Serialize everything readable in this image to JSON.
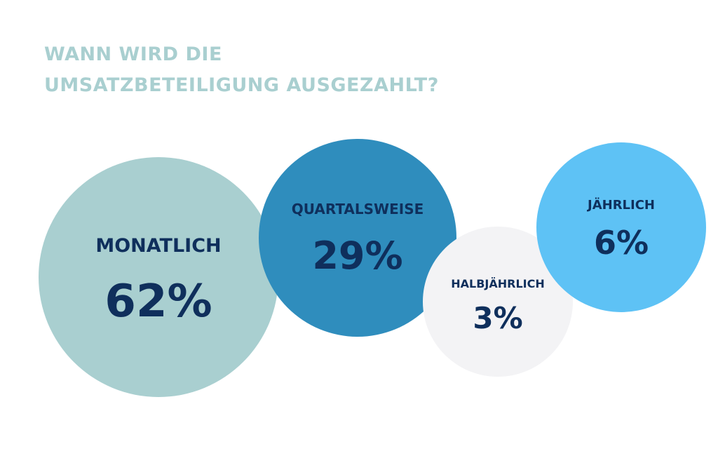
{
  "title": {
    "line1": "WANN WIRD DIE",
    "line2": "UMSATZBETEILIGUNG AUSGEZAHLT?"
  },
  "colors": {
    "title": "#a9cfd0",
    "label": "#0f2f5c"
  },
  "chart_data": {
    "type": "bubble",
    "title": "WANN WIRD DIE UMSATZBETEILIGUNG AUSGEZAHLT?",
    "series": [
      {
        "name": "MONATLICH",
        "value": 62,
        "label": "62%",
        "color": "#a9cfd0"
      },
      {
        "name": "QUARTALSWEISE",
        "value": 29,
        "label": "29%",
        "color": "#2f8dbd"
      },
      {
        "name": "HALBJÄHRLICH",
        "value": 3,
        "label": "3%",
        "color": "#f3f3f5"
      },
      {
        "name": "JÄHRLICH",
        "value": 6,
        "label": "6%",
        "color": "#5ec2f5"
      }
    ]
  }
}
